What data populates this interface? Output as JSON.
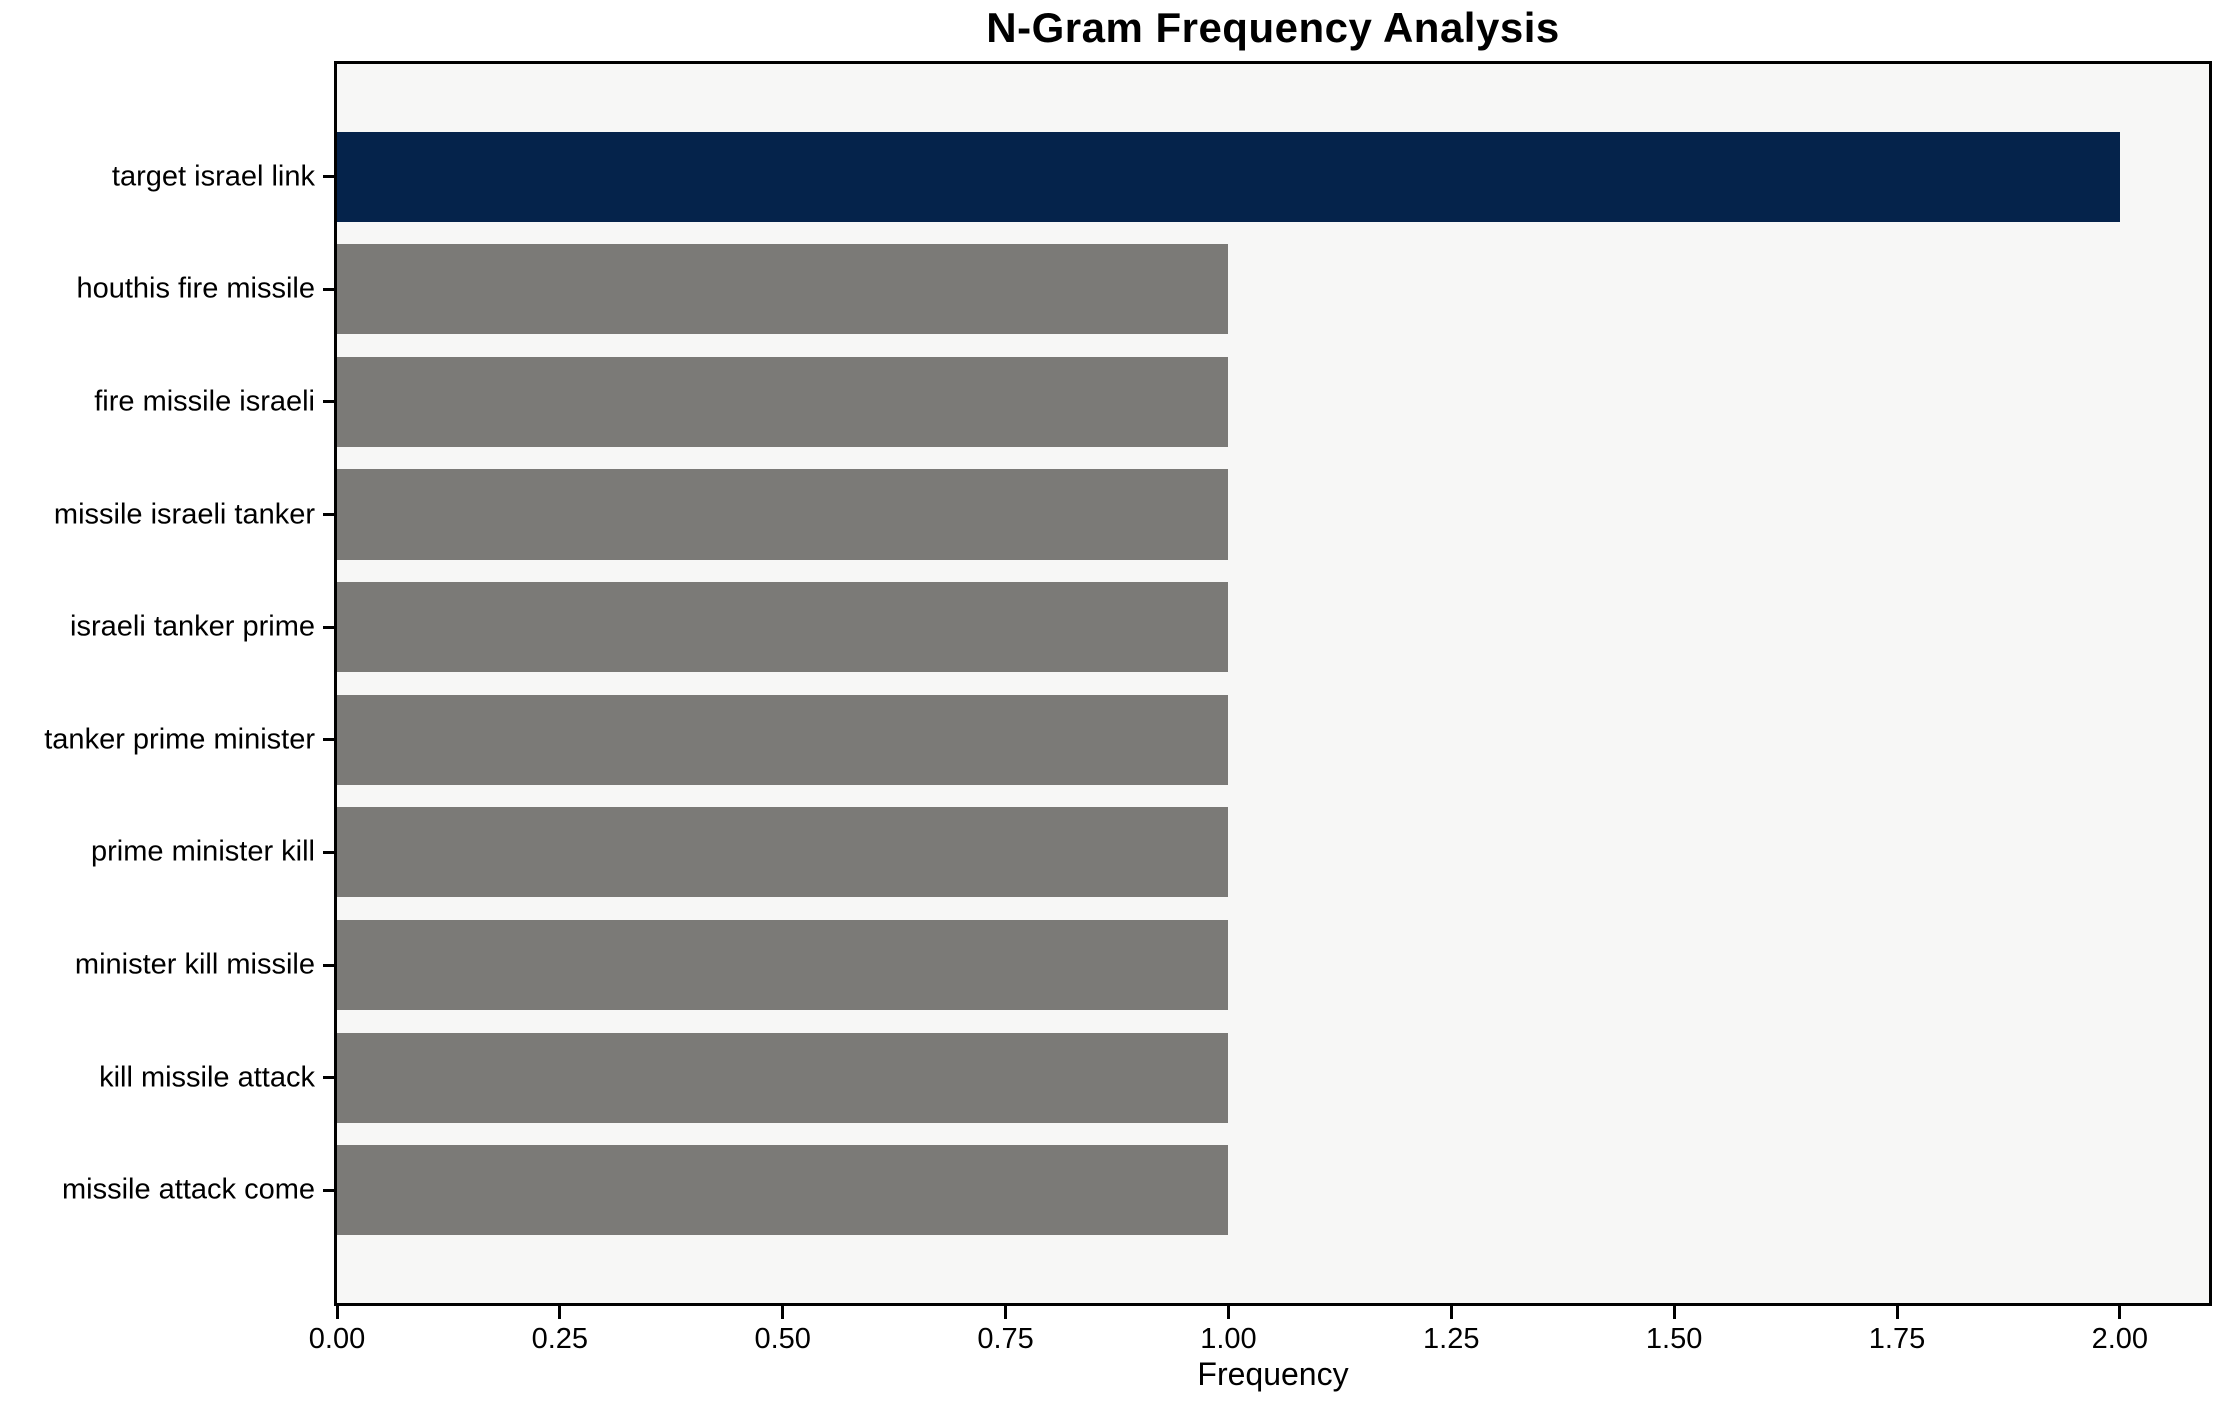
{
  "chart_data": {
    "type": "bar",
    "orientation": "horizontal",
    "title": "N-Gram Frequency Analysis",
    "xlabel": "Frequency",
    "ylabel": "",
    "categories": [
      "target israel link",
      "houthis fire missile",
      "fire missile israeli",
      "missile israeli tanker",
      "israeli tanker prime",
      "tanker prime minister",
      "prime minister kill",
      "minister kill missile",
      "kill missile attack",
      "missile attack come"
    ],
    "values": [
      2.0,
      1.0,
      1.0,
      1.0,
      1.0,
      1.0,
      1.0,
      1.0,
      1.0,
      1.0
    ],
    "bar_colors": [
      "#05234b",
      "#7b7a77",
      "#7b7a77",
      "#7b7a77",
      "#7b7a77",
      "#7b7a77",
      "#7b7a77",
      "#7b7a77",
      "#7b7a77",
      "#7b7a77"
    ],
    "xlim": [
      0,
      2.1
    ],
    "xtick_values": [
      0,
      0.25,
      0.5,
      0.75,
      1.0,
      1.25,
      1.5,
      1.75,
      2.0
    ],
    "xticks": [
      "0.00",
      "0.25",
      "0.50",
      "0.75",
      "1.00",
      "1.25",
      "1.50",
      "1.75",
      "2.00"
    ],
    "grid": false,
    "legend": null,
    "colors": {
      "highlight_bar": "#05234b",
      "default_bar": "#7b7a77",
      "plot_background": "#f7f7f6",
      "spine": "#000000",
      "page_background": "#ffffff",
      "text": "#000000"
    }
  }
}
